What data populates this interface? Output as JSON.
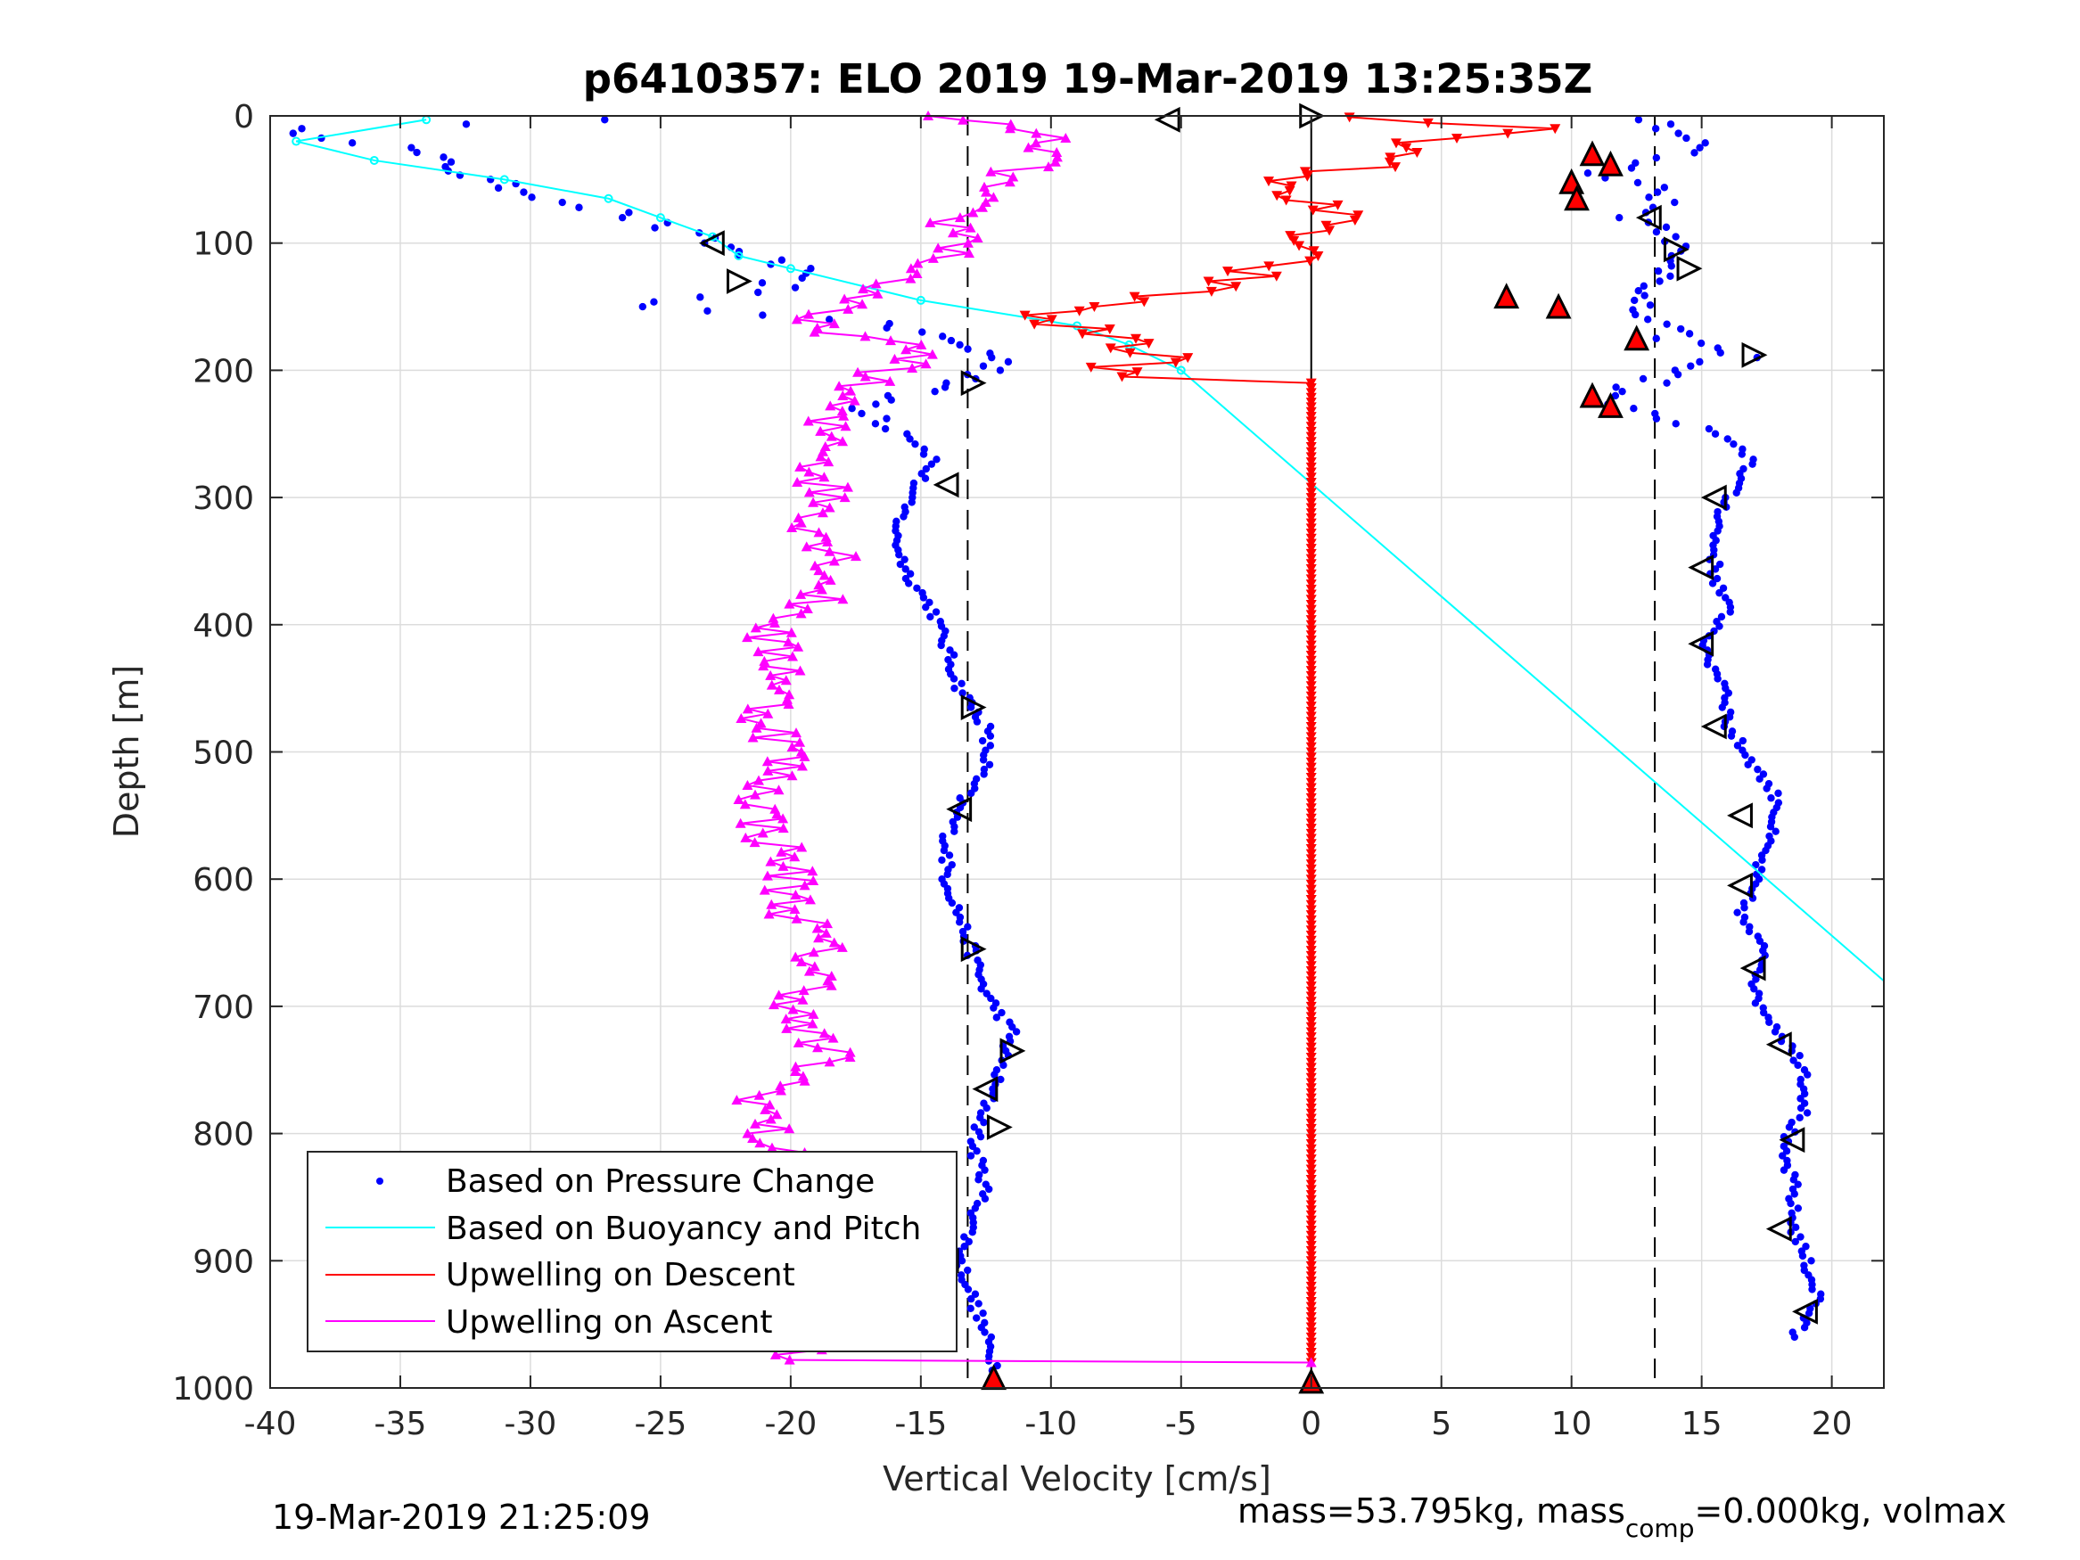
{
  "chart_data": {
    "type": "scatter",
    "title": "p6410357: ELO 2019 19-Mar-2019 13:25:35Z",
    "xlabel": "Vertical Velocity [cm/s]",
    "ylabel": "Depth [m]",
    "xlim": [
      -40,
      22
    ],
    "ylim": [
      1000,
      0
    ],
    "y_reversed": true,
    "grid": true,
    "xticks": [
      -40,
      -35,
      -30,
      -25,
      -20,
      -15,
      -10,
      -5,
      0,
      5,
      10,
      15,
      20
    ],
    "yticks": [
      0,
      100,
      200,
      300,
      400,
      500,
      600,
      700,
      800,
      900,
      1000
    ],
    "reference_lines": {
      "dashed_x": [
        -13.2,
        13.2
      ],
      "solid_x": 0
    },
    "legend": {
      "position": "lower-left",
      "entries": [
        {
          "label": "Based on Pressure Change",
          "color": "#0000ff",
          "marker": "dot"
        },
        {
          "label": "Based on Buoyancy and Pitch",
          "color": "#00ffff",
          "marker": "line"
        },
        {
          "label": "Upwelling on Descent",
          "color": "#ff0000",
          "marker": "line"
        },
        {
          "label": "Upwelling on Ascent",
          "color": "#ff00ff",
          "marker": "line"
        }
      ]
    },
    "series": [
      {
        "name": "Based on Pressure Change",
        "color": "#0000ff",
        "style": "dots",
        "branches": [
          {
            "depth": [
              3,
              10,
              25,
              40,
              50,
              60,
              80,
              100,
              110,
              120,
              135,
              150,
              160,
              170,
              180,
              190,
              200,
              210,
              220,
              230,
              250,
              270,
              300,
              330,
              360,
              390,
              420,
              450,
              480,
              510,
              540,
              570,
              600,
              630,
              660,
              690,
              720,
              750,
              780,
              810,
              840,
              870,
              900,
              930,
              960,
              990
            ],
            "velocity": [
              -26.5,
              -39.5,
              -35,
              -33,
              -32,
              -30,
              -26,
              -23,
              -21.5,
              -20,
              -20.5,
              -26,
              -18,
              -15,
              -13.5,
              -12,
              -12,
              -13.5,
              -16,
              -17,
              -15.5,
              -14.5,
              -15.5,
              -16,
              -15.5,
              -14.5,
              -14,
              -13.5,
              -12.5,
              -12.5,
              -13.5,
              -14,
              -14,
              -13.5,
              -13,
              -12.5,
              -11.5,
              -12,
              -12.5,
              -13,
              -12.5,
              -13,
              -13.5,
              -13,
              -12.5,
              -12
            ]
          },
          {
            "depth": [
              3,
              10,
              25,
              45,
              60,
              80,
              95,
              110,
              130,
              145,
              160,
              175,
              190,
              200,
              210,
              220,
              230,
              250,
              270,
              300,
              330,
              360,
              390,
              420,
              450,
              480,
              510,
              540,
              570,
              600,
              630,
              660,
              690,
              720,
              750,
              780,
              810,
              840,
              870,
              900,
              930,
              960
            ],
            "velocity": [
              13,
              14,
              15,
              11,
              14,
              12.5,
              14.5,
              13.5,
              14,
              12,
              13,
              14,
              16.5,
              14,
              13,
              11,
              12,
              15.5,
              17,
              16,
              15.5,
              15.5,
              16,
              15,
              16,
              16,
              17,
              18,
              17.5,
              17,
              16.5,
              17.5,
              17,
              18,
              19,
              19,
              18,
              18.5,
              18.5,
              19,
              19.5,
              18.5
            ]
          }
        ]
      },
      {
        "name": "Based on Buoyancy and Pitch",
        "color": "#00ffff",
        "style": "line",
        "depth": [
          3,
          20,
          35,
          50,
          65,
          80,
          95,
          110,
          120,
          145,
          165,
          180,
          200,
          680
        ],
        "velocity": [
          -34,
          -39,
          -36,
          -31,
          -27,
          -25,
          -23,
          -22,
          -20,
          -15,
          -9,
          -7,
          -5,
          22
        ]
      },
      {
        "name": "Upwelling on Descent",
        "color": "#ff0000",
        "style": "line-markers",
        "depth": [
          1,
          10,
          25,
          40,
          55,
          70,
          90,
          110,
          130,
          150,
          160,
          175,
          190,
          205,
          210,
          240,
          300,
          400,
          500,
          600,
          700,
          800,
          900,
          980
        ],
        "velocity": [
          0.5,
          10,
          3,
          2,
          -2,
          1,
          0,
          -1,
          -3,
          -8,
          -11,
          -7,
          -6,
          -8,
          0,
          0,
          0,
          0,
          0,
          0,
          0,
          0,
          0,
          0
        ]
      },
      {
        "name": "Upwelling on Ascent",
        "color": "#ff00ff",
        "style": "line-markers",
        "depth": [
          0,
          10,
          25,
          40,
          60,
          80,
          100,
          120,
          140,
          160,
          170,
          180,
          195,
          205,
          220,
          240,
          260,
          280,
          300,
          320,
          350,
          380,
          410,
          440,
          470,
          500,
          530,
          560,
          590,
          620,
          650,
          680,
          710,
          740,
          770,
          800,
          830,
          860,
          890,
          920,
          950,
          970,
          978,
          980
        ],
        "velocity": [
          -15,
          -11,
          -10,
          -11,
          -13,
          -14,
          -13,
          -15,
          -17,
          -20,
          -18,
          -16,
          -15,
          -17,
          -18,
          -19,
          -18,
          -19,
          -18.5,
          -19,
          -18,
          -19,
          -21,
          -20,
          -21,
          -20,
          -21,
          -21,
          -20,
          -20,
          -19,
          -19,
          -20,
          -18.5,
          -21,
          -21,
          -20,
          -21,
          -19,
          -18,
          -18,
          -19,
          -20,
          0
        ]
      }
    ],
    "triangle_markers": {
      "description": "open black triangles and red filled triangles along branches",
      "open": [
        {
          "x": -5.5,
          "y": 3,
          "dir": "left"
        },
        {
          "x": 0,
          "y": 0,
          "dir": "right"
        },
        {
          "x": -23,
          "y": 100,
          "dir": "left"
        },
        {
          "x": -22,
          "y": 130,
          "dir": "right"
        },
        {
          "x": -13,
          "y": 210,
          "dir": "right"
        },
        {
          "x": -14,
          "y": 290,
          "dir": "left"
        },
        {
          "x": -13,
          "y": 465,
          "dir": "right"
        },
        {
          "x": -13.5,
          "y": 545,
          "dir": "left"
        },
        {
          "x": -13,
          "y": 655,
          "dir": "right"
        },
        {
          "x": -11.5,
          "y": 735,
          "dir": "right"
        },
        {
          "x": -12.5,
          "y": 765,
          "dir": "left"
        },
        {
          "x": -12,
          "y": 795,
          "dir": "right"
        },
        {
          "x": -14,
          "y": 900,
          "dir": "left"
        },
        {
          "x": 13,
          "y": 80,
          "dir": "left"
        },
        {
          "x": 14,
          "y": 105,
          "dir": "right"
        },
        {
          "x": 14.5,
          "y": 120,
          "dir": "right"
        },
        {
          "x": 17,
          "y": 188,
          "dir": "right"
        },
        {
          "x": 15.5,
          "y": 300,
          "dir": "left"
        },
        {
          "x": 15,
          "y": 355,
          "dir": "left"
        },
        {
          "x": 15,
          "y": 415,
          "dir": "left"
        },
        {
          "x": 15.5,
          "y": 480,
          "dir": "left"
        },
        {
          "x": 16.5,
          "y": 550,
          "dir": "left"
        },
        {
          "x": 16.5,
          "y": 605,
          "dir": "left"
        },
        {
          "x": 17,
          "y": 670,
          "dir": "left"
        },
        {
          "x": 18,
          "y": 730,
          "dir": "left"
        },
        {
          "x": 18.5,
          "y": 805,
          "dir": "left"
        },
        {
          "x": 18,
          "y": 875,
          "dir": "left"
        },
        {
          "x": 19,
          "y": 940,
          "dir": "left"
        }
      ],
      "filled": [
        {
          "x": 10.8,
          "y": 30
        },
        {
          "x": 11.5,
          "y": 38
        },
        {
          "x": 10,
          "y": 52
        },
        {
          "x": 10.2,
          "y": 65
        },
        {
          "x": 7.5,
          "y": 142
        },
        {
          "x": 9.5,
          "y": 150
        },
        {
          "x": 12.5,
          "y": 175
        },
        {
          "x": 10.8,
          "y": 220
        },
        {
          "x": 11.5,
          "y": 228
        },
        {
          "x": -12.2,
          "y": 992
        },
        {
          "x": 0,
          "y": 995
        }
      ]
    }
  },
  "footer": {
    "timestamp": "19-Mar-2019 21:25:09",
    "mass_text_1": "mass=53.795kg, mass",
    "mass_sub": "comp",
    "mass_text_2": "=0.000kg, volmax"
  }
}
